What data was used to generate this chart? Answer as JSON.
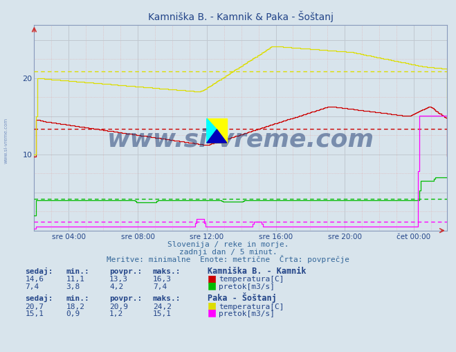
{
  "title": "Kamniška B. - Kamnik & Paka - Šoštanj",
  "background_color": "#d8e4ec",
  "plot_background": "#d8e4ec",
  "xlim": [
    0,
    287
  ],
  "ylim": [
    0,
    27
  ],
  "ytick_positions": [
    10,
    20
  ],
  "ytick_labels": [
    "10",
    "20"
  ],
  "xtick_positions": [
    24,
    72,
    120,
    168,
    216,
    264
  ],
  "xtick_labels": [
    "sre 04:00",
    "sre 08:00",
    "sre 12:00",
    "sre 16:00",
    "sre 20:00",
    "čet 00:00"
  ],
  "avg_kamnik_temp": 13.3,
  "avg_kamnik_pretok": 4.2,
  "avg_paka_temp": 20.9,
  "avg_paka_pretok": 1.2,
  "kamnik_temp_color": "#cc0000",
  "kamnik_pretok_color": "#00bb00",
  "paka_temp_color": "#dddd00",
  "paka_pretok_color": "#ff00ff",
  "grid_major_color": "#c0c8d0",
  "grid_minor_color": "#e0b0b0",
  "watermark": "www.si-vreme.com",
  "subtitle1": "Slovenija / reke in morje.",
  "subtitle2": "zadnji dan / 5 minut.",
  "subtitle3": "Meritve: minimalne  Enote: metrične  Črta: povprečje",
  "text_color": "#224488",
  "stats_kamnik": {
    "sedaj_temp": "14,6",
    "min_temp": "11,1",
    "povpr_temp": "13,3",
    "maks_temp": "16,3",
    "sedaj_pretok": "7,4",
    "min_pretok": "3,8",
    "povpr_pretok": "4,2",
    "maks_pretok": "7,4"
  },
  "stats_paka": {
    "sedaj_temp": "20,7",
    "min_temp": "18,2",
    "povpr_temp": "20,9",
    "maks_temp": "24,2",
    "sedaj_pretok": "15,1",
    "min_pretok": "0,9",
    "povpr_pretok": "1,2",
    "maks_pretok": "15,1"
  }
}
